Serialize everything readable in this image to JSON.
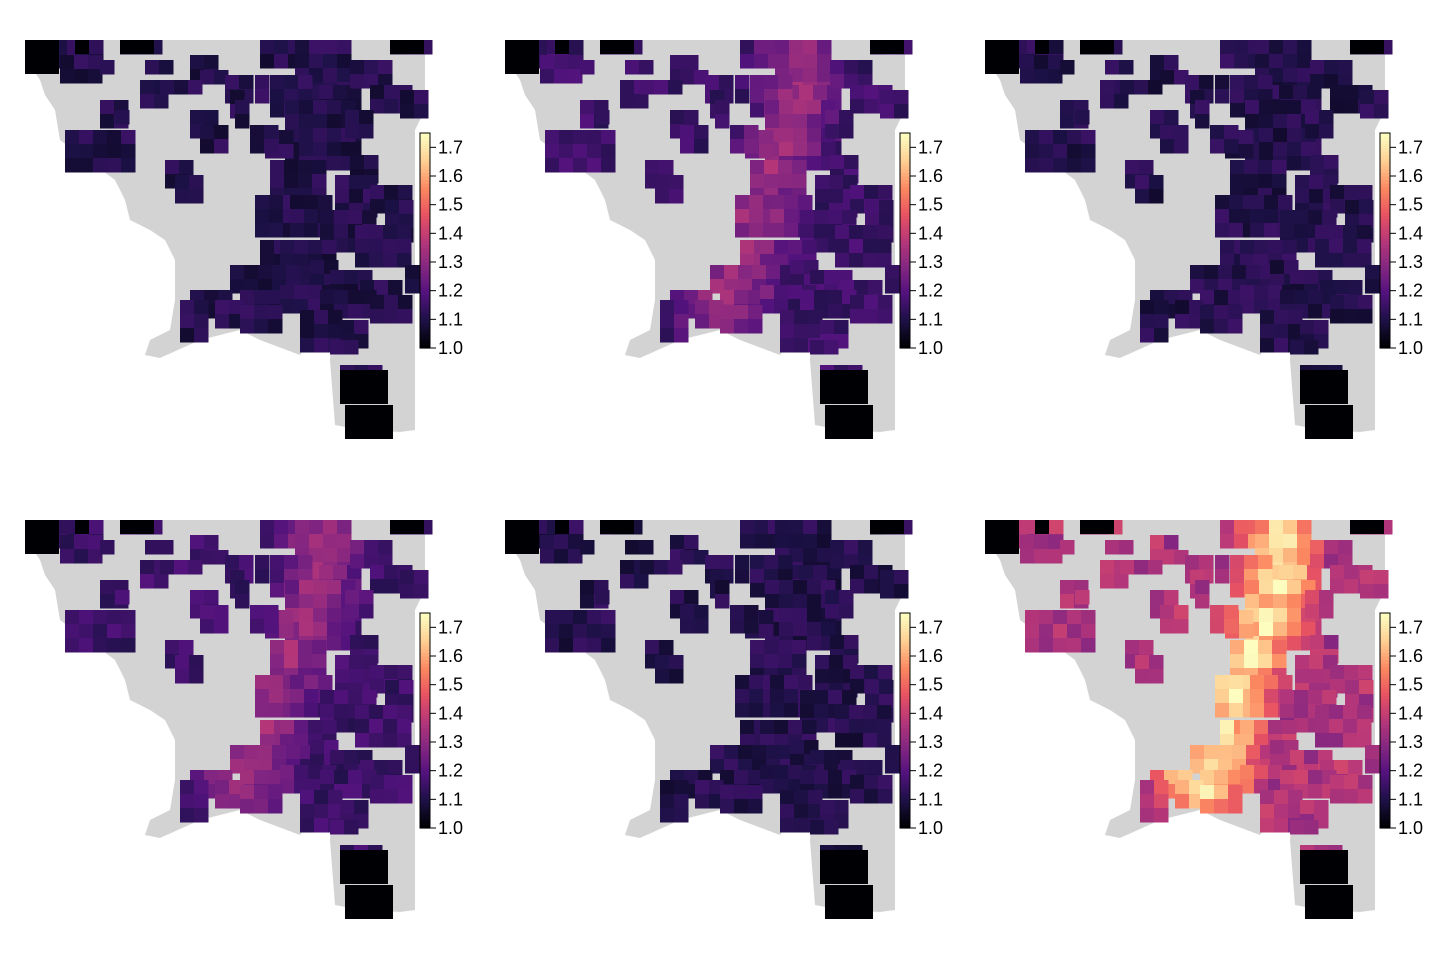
{
  "chart_data": [
    {
      "type": "heatmap",
      "panel": 1,
      "fill_level": "low",
      "hot_zone": false,
      "legend": {
        "ticks": [
          "1.0",
          "1.1",
          "1.2",
          "1.3",
          "1.4",
          "1.5",
          "1.6",
          "1.7"
        ],
        "range": [
          1.0,
          1.75
        ],
        "palette": "magma"
      }
    },
    {
      "type": "heatmap",
      "panel": 2,
      "fill_level": "medium",
      "hot_zone": true,
      "legend": {
        "ticks": [
          "1.0",
          "1.1",
          "1.2",
          "1.3",
          "1.4",
          "1.5",
          "1.6",
          "1.7"
        ],
        "range": [
          1.0,
          1.75
        ],
        "palette": "magma"
      }
    },
    {
      "type": "heatmap",
      "panel": 3,
      "fill_level": "low",
      "hot_zone": false,
      "legend": {
        "ticks": [
          "1.0",
          "1.1",
          "1.2",
          "1.3",
          "1.4",
          "1.5",
          "1.6",
          "1.7"
        ],
        "range": [
          1.0,
          1.75
        ],
        "palette": "magma"
      }
    },
    {
      "type": "heatmap",
      "panel": 4,
      "fill_level": "medium",
      "hot_zone": true,
      "legend": {
        "ticks": [
          "1.0",
          "1.1",
          "1.2",
          "1.3",
          "1.4",
          "1.5",
          "1.6",
          "1.7"
        ],
        "range": [
          1.0,
          1.75
        ],
        "palette": "magma"
      }
    },
    {
      "type": "heatmap",
      "panel": 5,
      "fill_level": "low",
      "hot_zone": false,
      "legend": {
        "ticks": [
          "1.0",
          "1.1",
          "1.2",
          "1.3",
          "1.4",
          "1.5",
          "1.6",
          "1.7"
        ],
        "range": [
          1.0,
          1.75
        ],
        "palette": "magma"
      }
    },
    {
      "type": "heatmap",
      "panel": 6,
      "fill_level": "high",
      "hot_zone": true,
      "legend": {
        "ticks": [
          "1.0",
          "1.1",
          "1.2",
          "1.3",
          "1.4",
          "1.5",
          "1.6",
          "1.7"
        ],
        "range": [
          1.0,
          1.75
        ],
        "palette": "magma"
      }
    }
  ],
  "colors": {
    "land": "#d3d3d3",
    "no_data": "#000004",
    "palette_stops": [
      "#000004",
      "#1d1147",
      "#51127c",
      "#832681",
      "#b73779",
      "#e85362",
      "#fc8961",
      "#fecf92",
      "#fcfdbf"
    ]
  }
}
